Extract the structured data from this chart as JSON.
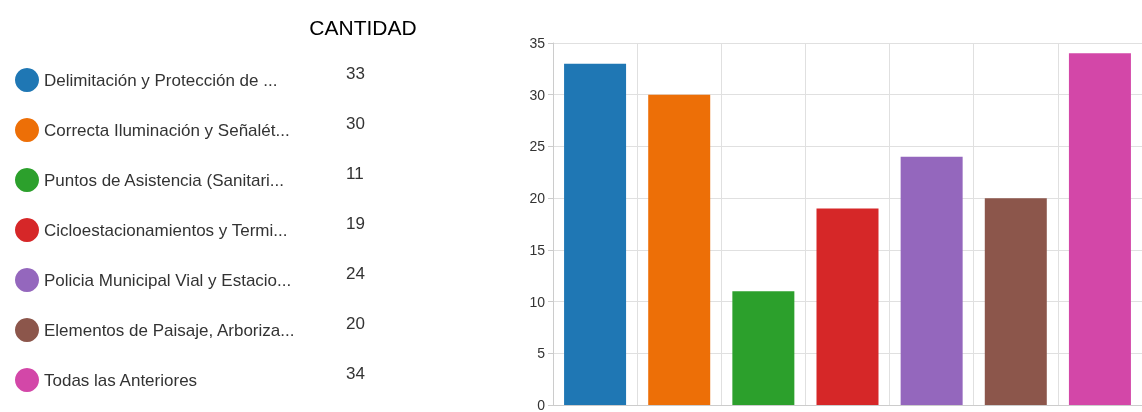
{
  "chart_data": {
    "type": "bar",
    "title": "CANTIDAD",
    "categories": [
      null,
      null,
      null,
      null,
      null,
      null,
      null
    ],
    "series": [
      {
        "name": "Delimitación y Protección de ...",
        "color": "#1f77b4",
        "values": [
          33,
          null,
          null,
          null,
          null,
          null,
          null
        ]
      },
      {
        "name": "Correcta Iluminación y Señalét...",
        "color": "#ed6f07",
        "values": [
          null,
          30,
          null,
          null,
          null,
          null,
          null
        ]
      },
      {
        "name": "Puntos de Asistencia (Sanitari...",
        "color": "#2ca02c",
        "values": [
          null,
          null,
          11,
          null,
          null,
          null,
          null
        ]
      },
      {
        "name": "Cicloestacionamientos y Termi...",
        "color": "#d62728",
        "values": [
          null,
          null,
          null,
          19,
          null,
          null,
          null
        ]
      },
      {
        "name": "Policia Municipal Vial y Estacio...",
        "color": "#9467bd",
        "values": [
          null,
          null,
          null,
          null,
          24,
          null,
          null
        ]
      },
      {
        "name": "Elementos de Paisaje, Arboriza...",
        "color": "#8c564b",
        "values": [
          null,
          null,
          null,
          null,
          null,
          20,
          null
        ]
      },
      {
        "name": "Todas las Anteriores",
        "color": "#d347a8",
        "values": [
          null,
          null,
          null,
          null,
          null,
          null,
          34
        ]
      }
    ],
    "annotations": [
      "33",
      "30",
      "11",
      "19",
      "24",
      "20",
      "34"
    ],
    "ylim": [
      0,
      35
    ],
    "yticks": [
      0,
      5,
      10,
      15,
      20,
      25,
      30,
      35
    ],
    "grid": true,
    "legend": "left",
    "tick_labels": "y"
  }
}
